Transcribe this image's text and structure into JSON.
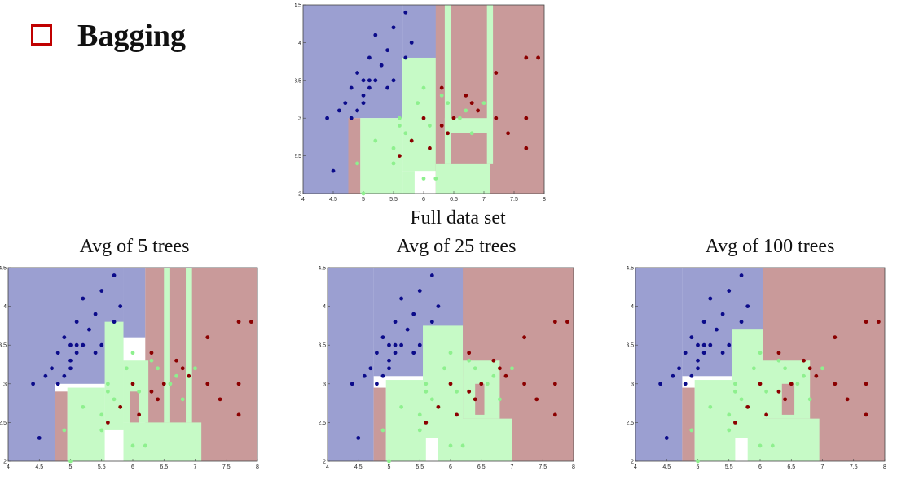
{
  "slide": {
    "title": "Bagging"
  },
  "colors": {
    "class0_region": "#9b9fd1",
    "class1_region": "#c6fac6",
    "class2_region": "#c99a9a",
    "class0_point": "#0b0b8a",
    "class1_point": "#8ef08e",
    "class2_point": "#8b0000",
    "rule": "#c00000"
  },
  "chart_data": [
    {
      "type": "scatter",
      "title": "Full data set",
      "xlim": [
        4,
        8
      ],
      "ylim": [
        2,
        4.5
      ],
      "xticks": [
        "4",
        "4.5",
        "5",
        "5.5",
        "6",
        "6.5",
        "7",
        "7.5",
        "8"
      ],
      "yticks": [
        "2",
        "2.5",
        "3",
        "3.5",
        "4",
        "4.5"
      ],
      "regions": [
        {
          "class": 0,
          "x": [
            4,
            4.75
          ],
          "y": [
            2,
            4.5
          ]
        },
        {
          "class": 0,
          "x": [
            4.75,
            5.65
          ],
          "y": [
            3.0,
            4.5
          ]
        },
        {
          "class": 2,
          "x": [
            4.75,
            4.95
          ],
          "y": [
            2,
            3.0
          ]
        },
        {
          "class": 1,
          "x": [
            4.95,
            5.65
          ],
          "y": [
            2,
            3.0
          ]
        },
        {
          "class": 1,
          "x": [
            5.65,
            6.25
          ],
          "y": [
            2.3,
            3.8
          ]
        },
        {
          "class": 0,
          "x": [
            5.65,
            6.25
          ],
          "y": [
            3.8,
            4.5
          ]
        },
        {
          "class": 2,
          "x": [
            6.2,
            8
          ],
          "y": [
            2,
            4.5
          ]
        },
        {
          "class": 1,
          "x": [
            6.2,
            7.1
          ],
          "y": [
            2,
            2.4
          ]
        },
        {
          "class": 1,
          "x": [
            6.35,
            6.45
          ],
          "y": [
            2.4,
            4.5
          ]
        },
        {
          "class": 1,
          "x": [
            7.05,
            7.15
          ],
          "y": [
            2.4,
            4.5
          ]
        },
        {
          "class": 1,
          "x": [
            6.35,
            7.1
          ],
          "y": [
            2.8,
            3.0
          ]
        },
        {
          "class": 1,
          "x": [
            5.65,
            5.85
          ],
          "y": [
            2,
            2.3
          ]
        }
      ]
    },
    {
      "type": "scatter",
      "title": "Avg of 5 trees",
      "xlim": [
        4,
        8
      ],
      "ylim": [
        2,
        4.5
      ],
      "xticks": [
        "4",
        "4.5",
        "5",
        "5.5",
        "6",
        "6.5",
        "7",
        "7.5",
        "8"
      ],
      "yticks": [
        "2",
        "2.5",
        "3",
        "3.5",
        "4",
        "4.5"
      ],
      "regions": [
        {
          "class": 0,
          "x": [
            4,
            4.75
          ],
          "y": [
            2,
            4.5
          ]
        },
        {
          "class": 0,
          "x": [
            4.75,
            5.85
          ],
          "y": [
            3.0,
            4.5
          ]
        },
        {
          "class": 2,
          "x": [
            4.75,
            4.95
          ],
          "y": [
            2,
            2.9
          ]
        },
        {
          "class": 1,
          "x": [
            4.95,
            5.55
          ],
          "y": [
            2,
            2.95
          ]
        },
        {
          "class": 1,
          "x": [
            5.55,
            5.85
          ],
          "y": [
            2.4,
            3.8
          ]
        },
        {
          "class": 0,
          "x": [
            5.85,
            6.2
          ],
          "y": [
            3.6,
            4.5
          ]
        },
        {
          "class": 2,
          "x": [
            6.2,
            8
          ],
          "y": [
            2,
            4.5
          ]
        },
        {
          "class": 1,
          "x": [
            5.85,
            7.1
          ],
          "y": [
            2,
            2.5
          ]
        },
        {
          "class": 1,
          "x": [
            6.5,
            6.6
          ],
          "y": [
            2.5,
            4.5
          ]
        },
        {
          "class": 1,
          "x": [
            6.85,
            6.95
          ],
          "y": [
            2.5,
            4.5
          ]
        },
        {
          "class": 1,
          "x": [
            5.85,
            6.25
          ],
          "y": [
            2.5,
            3.3
          ]
        },
        {
          "class": 2,
          "x": [
            5.95,
            6.1
          ],
          "y": [
            2.5,
            2.9
          ]
        }
      ]
    },
    {
      "type": "scatter",
      "title": "Avg of 25 trees",
      "xlim": [
        4,
        8
      ],
      "ylim": [
        2,
        4.5
      ],
      "xticks": [
        "4",
        "4.5",
        "5",
        "5.5",
        "6",
        "6.5",
        "7",
        "7.5",
        "8"
      ],
      "yticks": [
        "2",
        "2.5",
        "3",
        "3.5",
        "4",
        "4.5"
      ],
      "regions": [
        {
          "class": 0,
          "x": [
            4,
            4.75
          ],
          "y": [
            2,
            4.5
          ]
        },
        {
          "class": 0,
          "x": [
            4.75,
            6.3
          ],
          "y": [
            3.1,
            4.5
          ]
        },
        {
          "class": 2,
          "x": [
            4.75,
            4.95
          ],
          "y": [
            2,
            2.95
          ]
        },
        {
          "class": 1,
          "x": [
            4.95,
            5.6
          ],
          "y": [
            2,
            3.05
          ]
        },
        {
          "class": 1,
          "x": [
            5.55,
            6.2
          ],
          "y": [
            2.3,
            3.75
          ]
        },
        {
          "class": 2,
          "x": [
            6.2,
            8
          ],
          "y": [
            2,
            4.5
          ]
        },
        {
          "class": 1,
          "x": [
            5.8,
            7.0
          ],
          "y": [
            2,
            2.55
          ]
        },
        {
          "class": 1,
          "x": [
            6.2,
            6.8
          ],
          "y": [
            2.55,
            3.3
          ]
        },
        {
          "class": 2,
          "x": [
            6.4,
            6.55
          ],
          "y": [
            2.6,
            3.0
          ]
        }
      ]
    },
    {
      "type": "scatter",
      "title": "Avg of 100 trees",
      "xlim": [
        4,
        8
      ],
      "ylim": [
        2,
        4.5
      ],
      "xticks": [
        "4",
        "4.5",
        "5",
        "5.5",
        "6",
        "6.5",
        "7",
        "7.5",
        "8"
      ],
      "yticks": [
        "2",
        "2.5",
        "3",
        "3.5",
        "4",
        "4.5"
      ],
      "regions": [
        {
          "class": 0,
          "x": [
            4,
            4.75
          ],
          "y": [
            2,
            4.5
          ]
        },
        {
          "class": 0,
          "x": [
            4.75,
            6.2
          ],
          "y": [
            3.1,
            4.5
          ]
        },
        {
          "class": 2,
          "x": [
            4.75,
            4.95
          ],
          "y": [
            2,
            2.95
          ]
        },
        {
          "class": 1,
          "x": [
            4.95,
            5.6
          ],
          "y": [
            2,
            3.05
          ]
        },
        {
          "class": 1,
          "x": [
            5.55,
            6.05
          ],
          "y": [
            2.3,
            3.7
          ]
        },
        {
          "class": 2,
          "x": [
            6.05,
            8
          ],
          "y": [
            2,
            4.5
          ]
        },
        {
          "class": 1,
          "x": [
            5.8,
            6.95
          ],
          "y": [
            2,
            2.55
          ]
        },
        {
          "class": 1,
          "x": [
            6.05,
            6.8
          ],
          "y": [
            2.55,
            3.3
          ]
        },
        {
          "class": 2,
          "x": [
            6.35,
            6.55
          ],
          "y": [
            2.6,
            3.0
          ]
        }
      ]
    }
  ],
  "points": [
    {
      "x": 4.4,
      "y": 3.0,
      "c": 0
    },
    {
      "x": 4.5,
      "y": 2.3,
      "c": 0
    },
    {
      "x": 4.6,
      "y": 3.1,
      "c": 0
    },
    {
      "x": 4.7,
      "y": 3.2,
      "c": 0
    },
    {
      "x": 4.8,
      "y": 3.4,
      "c": 0
    },
    {
      "x": 4.8,
      "y": 3.0,
      "c": 0
    },
    {
      "x": 4.9,
      "y": 3.1,
      "c": 0
    },
    {
      "x": 4.9,
      "y": 3.6,
      "c": 0
    },
    {
      "x": 5.0,
      "y": 3.5,
      "c": 0
    },
    {
      "x": 5.0,
      "y": 3.3,
      "c": 0
    },
    {
      "x": 5.0,
      "y": 3.2,
      "c": 0
    },
    {
      "x": 5.1,
      "y": 3.8,
      "c": 0
    },
    {
      "x": 5.1,
      "y": 3.5,
      "c": 0
    },
    {
      "x": 5.1,
      "y": 3.4,
      "c": 0
    },
    {
      "x": 5.2,
      "y": 4.1,
      "c": 0
    },
    {
      "x": 5.2,
      "y": 3.5,
      "c": 0
    },
    {
      "x": 5.3,
      "y": 3.7,
      "c": 0
    },
    {
      "x": 5.4,
      "y": 3.9,
      "c": 0
    },
    {
      "x": 5.4,
      "y": 3.4,
      "c": 0
    },
    {
      "x": 5.5,
      "y": 4.2,
      "c": 0
    },
    {
      "x": 5.5,
      "y": 3.5,
      "c": 0
    },
    {
      "x": 5.7,
      "y": 3.8,
      "c": 0
    },
    {
      "x": 5.7,
      "y": 4.4,
      "c": 0
    },
    {
      "x": 5.8,
      "y": 4.0,
      "c": 0
    },
    {
      "x": 5.0,
      "y": 2.0,
      "c": 1
    },
    {
      "x": 4.9,
      "y": 2.4,
      "c": 1
    },
    {
      "x": 5.2,
      "y": 2.7,
      "c": 1
    },
    {
      "x": 5.5,
      "y": 2.4,
      "c": 1
    },
    {
      "x": 5.5,
      "y": 2.6,
      "c": 1
    },
    {
      "x": 5.6,
      "y": 2.9,
      "c": 1
    },
    {
      "x": 5.6,
      "y": 3.0,
      "c": 1
    },
    {
      "x": 5.7,
      "y": 2.8,
      "c": 1
    },
    {
      "x": 5.8,
      "y": 2.7,
      "c": 1
    },
    {
      "x": 5.9,
      "y": 3.2,
      "c": 1
    },
    {
      "x": 6.0,
      "y": 2.2,
      "c": 1
    },
    {
      "x": 6.0,
      "y": 3.4,
      "c": 1
    },
    {
      "x": 6.1,
      "y": 2.9,
      "c": 1
    },
    {
      "x": 6.2,
      "y": 2.2,
      "c": 1
    },
    {
      "x": 6.3,
      "y": 3.3,
      "c": 1
    },
    {
      "x": 6.4,
      "y": 3.2,
      "c": 1
    },
    {
      "x": 6.6,
      "y": 3.0,
      "c": 1
    },
    {
      "x": 6.8,
      "y": 2.8,
      "c": 1
    },
    {
      "x": 7.0,
      "y": 3.2,
      "c": 1
    },
    {
      "x": 6.7,
      "y": 3.1,
      "c": 1
    },
    {
      "x": 5.6,
      "y": 2.5,
      "c": 2
    },
    {
      "x": 5.8,
      "y": 2.7,
      "c": 2
    },
    {
      "x": 6.0,
      "y": 3.0,
      "c": 2
    },
    {
      "x": 6.1,
      "y": 2.6,
      "c": 2
    },
    {
      "x": 6.3,
      "y": 2.9,
      "c": 2
    },
    {
      "x": 6.4,
      "y": 2.8,
      "c": 2
    },
    {
      "x": 6.5,
      "y": 3.0,
      "c": 2
    },
    {
      "x": 6.7,
      "y": 3.3,
      "c": 2
    },
    {
      "x": 6.9,
      "y": 3.1,
      "c": 2
    },
    {
      "x": 7.2,
      "y": 3.0,
      "c": 2
    },
    {
      "x": 7.4,
      "y": 2.8,
      "c": 2
    },
    {
      "x": 7.7,
      "y": 2.6,
      "c": 2
    },
    {
      "x": 7.7,
      "y": 3.0,
      "c": 2
    },
    {
      "x": 7.9,
      "y": 3.8,
      "c": 2
    },
    {
      "x": 7.7,
      "y": 3.8,
      "c": 2
    },
    {
      "x": 7.2,
      "y": 3.6,
      "c": 2
    },
    {
      "x": 6.3,
      "y": 3.4,
      "c": 2
    },
    {
      "x": 6.8,
      "y": 3.2,
      "c": 2
    }
  ]
}
